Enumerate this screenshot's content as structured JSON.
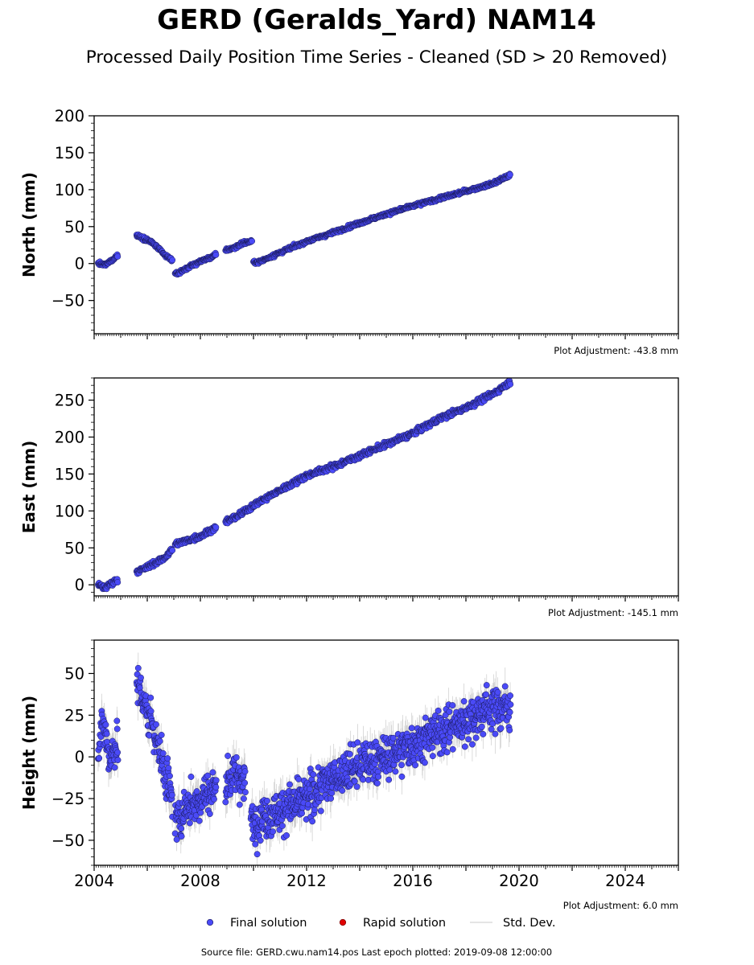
{
  "title": "GERD (Geralds_Yard) NAM14",
  "subtitle": "Processed Daily Position Time Series - Cleaned (SD > 20 Removed)",
  "legend": {
    "final": "Final solution",
    "rapid": "Rapid solution",
    "std": "Std. Dev."
  },
  "footer": "Source file: GERD.cwu.nam14.pos  Last epoch plotted: 2019-09-08 12:00:00",
  "colors": {
    "final": "#4a4af7",
    "rapid": "#e00000",
    "std": "#c8c8c8",
    "edge": "#1a1a5a"
  },
  "chart_data": [
    {
      "type": "scatter",
      "ylabel": "North (mm)",
      "adjustment": "Plot Adjustment: -43.8 mm",
      "xlim": [
        2004.0,
        2026.0
      ],
      "ylim": [
        -95,
        200
      ],
      "yticks": [
        -50,
        0,
        50,
        100,
        150,
        200
      ],
      "ytick_labels": [
        "−50",
        "0",
        "50",
        "100",
        "150",
        "200"
      ],
      "noise": 1.5,
      "segments": [
        {
          "x": [
            2004.15,
            2004.4,
            2004.65,
            2004.9
          ],
          "y": [
            0,
            -2,
            4,
            12
          ]
        },
        {
          "x": [
            2005.6,
            2005.9,
            2006.2,
            2006.7,
            2006.95
          ],
          "y": [
            38,
            34,
            28,
            10,
            5
          ]
        },
        {
          "x": [
            2007.05,
            2007.5,
            2008.0,
            2008.5,
            2008.6
          ],
          "y": [
            -15,
            -6,
            3,
            10,
            12
          ]
        },
        {
          "x": [
            2008.95,
            2009.3,
            2009.6,
            2009.95
          ],
          "y": [
            18,
            22,
            28,
            30
          ]
        },
        {
          "x": [
            2010.0,
            2010.2,
            2011.0,
            2012.0,
            2013.0,
            2014.0,
            2015.0,
            2016.0,
            2017.0,
            2018.0,
            2019.0,
            2019.68
          ],
          "y": [
            2,
            2,
            15,
            30,
            42,
            55,
            67,
            78,
            88,
            98,
            108,
            120
          ]
        }
      ]
    },
    {
      "type": "scatter",
      "ylabel": "East (mm)",
      "adjustment": "Plot Adjustment: -145.1 mm",
      "xlim": [
        2004.0,
        2026.0
      ],
      "ylim": [
        -15,
        280
      ],
      "yticks": [
        0,
        50,
        100,
        150,
        200,
        250
      ],
      "ytick_labels": [
        "0",
        "50",
        "100",
        "150",
        "200",
        "250"
      ],
      "noise": 2.5,
      "segments": [
        {
          "x": [
            2004.15,
            2004.4,
            2004.65,
            2004.9
          ],
          "y": [
            0,
            -4,
            2,
            8
          ]
        },
        {
          "x": [
            2005.6,
            2005.9,
            2006.2,
            2006.6,
            2006.95
          ],
          "y": [
            18,
            22,
            28,
            35,
            48
          ]
        },
        {
          "x": [
            2007.05,
            2007.5,
            2008.0,
            2008.6
          ],
          "y": [
            55,
            60,
            66,
            78
          ]
        },
        {
          "x": [
            2008.95,
            2009.5,
            2010.0,
            2011.0,
            2012.0,
            2013.0,
            2014.0,
            2015.0,
            2016.0,
            2017.0,
            2018.0,
            2019.0,
            2019.68
          ],
          "y": [
            85,
            95,
            108,
            128,
            148,
            160,
            175,
            190,
            205,
            225,
            240,
            258,
            275
          ]
        }
      ]
    },
    {
      "type": "scatter",
      "ylabel": "Height (mm)",
      "adjustment": "Plot Adjustment: 6.0 mm",
      "xlim": [
        2004.0,
        2026.0
      ],
      "ylim": [
        -65,
        70
      ],
      "yticks": [
        -50,
        -25,
        0,
        25,
        50
      ],
      "ytick_labels": [
        "−50",
        "−25",
        "0",
        "25",
        "50"
      ],
      "xticks": [
        2004,
        2008,
        2012,
        2016,
        2020,
        2024
      ],
      "xtick_labels": [
        "2004",
        "2008",
        "2012",
        "2016",
        "2020",
        "2024"
      ],
      "noise": 9,
      "segments": [
        {
          "x": [
            2004.15,
            2004.35,
            2004.6,
            2004.9
          ],
          "y": [
            5,
            20,
            0,
            10
          ]
        },
        {
          "x": [
            2005.6,
            2005.9,
            2006.2,
            2006.5,
            2006.95
          ],
          "y": [
            45,
            30,
            20,
            0,
            -25
          ]
        },
        {
          "x": [
            2007.05,
            2007.5,
            2008.0,
            2008.6
          ],
          "y": [
            -40,
            -30,
            -25,
            -18
          ]
        },
        {
          "x": [
            2008.95,
            2009.3,
            2009.7
          ],
          "y": [
            -15,
            -10,
            -15
          ]
        },
        {
          "x": [
            2009.9,
            2010.5,
            2011.0,
            2012.0,
            2013.0,
            2014.0,
            2015.0,
            2016.0,
            2017.0,
            2018.0,
            2019.0,
            2019.68
          ],
          "y": [
            -40,
            -35,
            -32,
            -25,
            -12,
            -5,
            0,
            8,
            15,
            22,
            30,
            30
          ]
        }
      ]
    }
  ]
}
